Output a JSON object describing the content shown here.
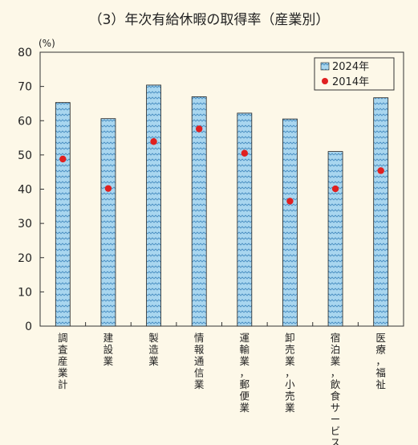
{
  "chart_data": {
    "type": "bar",
    "title": "（3）年次有給休暇の取得率（産業別）",
    "ylabel": "(%)",
    "ylim": [
      0,
      80
    ],
    "yticks": [
      0,
      10,
      20,
      30,
      40,
      50,
      60,
      70,
      80
    ],
    "grid": false,
    "legend_position": "top-right",
    "categories": [
      "調査産業計",
      "建設業",
      "製造業",
      "情報通信業",
      "運輸業，郵便業",
      "卸売業，小売業",
      "宿泊業，飲食サービス業",
      "医療，福祉"
    ],
    "series": [
      {
        "name": "2024年",
        "kind": "bar",
        "color": "#a9d6ef",
        "values": [
          65.3,
          60.6,
          70.4,
          67.0,
          62.2,
          60.5,
          51.0,
          66.7
        ]
      },
      {
        "name": "2014年",
        "kind": "dot",
        "color": "#e02020",
        "values": [
          48.8,
          40.2,
          53.9,
          57.6,
          50.5,
          36.5,
          40.1,
          45.4
        ]
      }
    ]
  }
}
